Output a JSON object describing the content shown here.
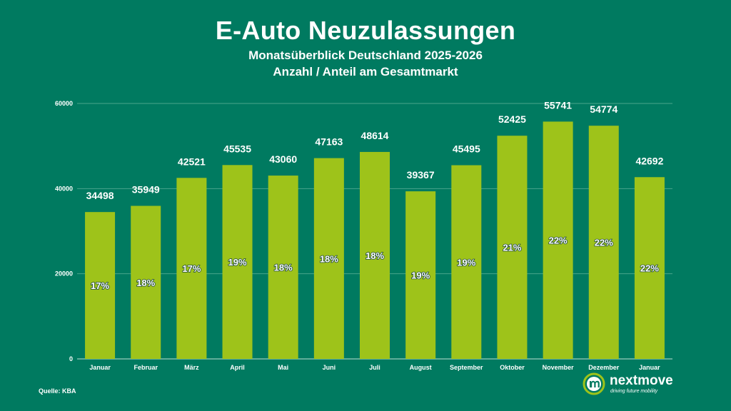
{
  "header": {
    "title": "E-Auto Neuzulassungen",
    "subtitle_line1": "Monatsüberblick Deutschland 2025-2026",
    "subtitle_line2": "Anzahl / Anteil am Gesamtmarkt"
  },
  "colors": {
    "background": "#007a60",
    "bar": "#9ec31a",
    "text": "#ffffff",
    "gridline": "#4aa58c",
    "logo_green": "#9ec31a"
  },
  "chart_data": {
    "type": "bar",
    "title": "E-Auto Neuzulassungen",
    "xlabel": "",
    "ylabel": "",
    "ylim": [
      0,
      60000
    ],
    "yticks": [
      0,
      20000,
      40000,
      60000
    ],
    "ytick_labels": [
      "0",
      "20000",
      "40000",
      "60000"
    ],
    "grid": true,
    "categories": [
      "Januar",
      "Februar",
      "März",
      "April",
      "Mai",
      "Juni",
      "Juli",
      "August",
      "September",
      "Oktober",
      "November",
      "Dezember",
      "Januar"
    ],
    "values": [
      34498,
      35949,
      42521,
      45535,
      43060,
      47163,
      48614,
      39367,
      45495,
      52425,
      55741,
      54774,
      42692
    ],
    "value_labels": [
      "34498",
      "35949",
      "42521",
      "45535",
      "43060",
      "47163",
      "48614",
      "39367",
      "45495",
      "52425",
      "55741",
      "54774",
      "42692"
    ],
    "shares": [
      "17%",
      "18%",
      "17%",
      "19%",
      "18%",
      "18%",
      "18%",
      "19%",
      "19%",
      "21%",
      "22%",
      "22%",
      "22%"
    ]
  },
  "footer": {
    "source": "Quelle: KBA",
    "brand_name": "nextmove",
    "brand_tagline": "driving future mobility"
  }
}
